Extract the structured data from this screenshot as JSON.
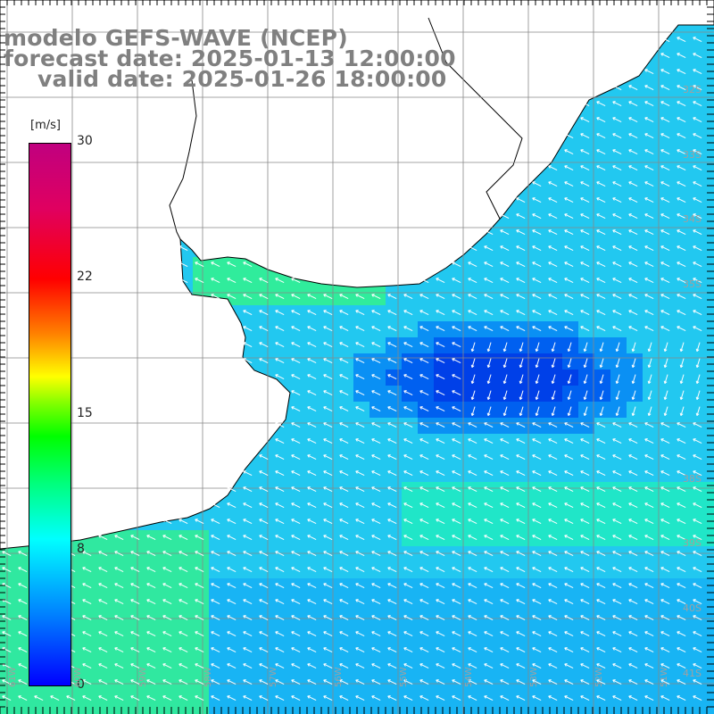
{
  "title": {
    "line1": "modelo GEFS-WAVE (NCEP)",
    "line2": "forecast date: 2025-01-13 12:00:00",
    "line3": "valid date: 2025-01-26 18:00:00"
  },
  "colorbar": {
    "unit": "[m/s]",
    "ticks": [
      "30",
      "22",
      "15",
      "8",
      "0"
    ],
    "colors": [
      "#0000ff",
      "#00ffff",
      "#00ff00",
      "#ffff00",
      "#ff0000",
      "#c0007f"
    ]
  },
  "lat_labels": [
    "32S",
    "33S",
    "34S",
    "35S",
    "38S",
    "39S",
    "40S",
    "41S"
  ],
  "lon_labels": [
    "61W",
    "60W",
    "59W",
    "58W",
    "57W",
    "56W",
    "55W",
    "54W",
    "53W",
    "52W",
    "51W"
  ],
  "map": {
    "region": "Rio de la Plata and South Atlantic",
    "field": "wind speed",
    "wind_direction": "from east / northeast"
  }
}
